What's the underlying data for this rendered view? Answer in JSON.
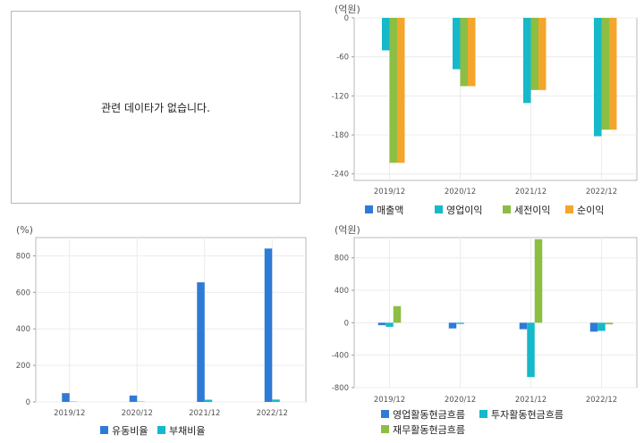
{
  "no_data_message": "관련 데이타가 없습니다.",
  "chart_data": [
    {
      "id": "income",
      "type": "bar",
      "unit_label": "(억원)",
      "categories": [
        "2019/12",
        "2020/12",
        "2021/12",
        "2022/12"
      ],
      "ylim": [
        -250,
        0
      ],
      "yticks": [
        0,
        -60,
        -120,
        -180,
        -240
      ],
      "grid": true,
      "legend_placement": "bottom",
      "series": [
        {
          "name": "매출액",
          "color": "#2e7bd6",
          "values": [
            0,
            0,
            0,
            0
          ]
        },
        {
          "name": "영업이익",
          "color": "#16b9c9",
          "values": [
            -50,
            -79,
            -131,
            -182
          ]
        },
        {
          "name": "세전이익",
          "color": "#8cbe43",
          "values": [
            -223,
            -105,
            -111,
            -172
          ]
        },
        {
          "name": "순이익",
          "color": "#f3a62b",
          "values": [
            -223,
            -105,
            -111,
            -172
          ]
        }
      ]
    },
    {
      "id": "ratio",
      "type": "bar",
      "unit_label": "(%)",
      "categories": [
        "2019/12",
        "2020/12",
        "2021/12",
        "2022/12"
      ],
      "ylim": [
        0,
        900
      ],
      "yticks": [
        0,
        200,
        400,
        600,
        800
      ],
      "grid": true,
      "legend_placement": "bottom",
      "series": [
        {
          "name": "유동비율",
          "color": "#2e7bd6",
          "values": [
            48,
            35,
            655,
            840
          ]
        },
        {
          "name": "부채비율",
          "color": "#16b9c9",
          "values": [
            2,
            2,
            12,
            13
          ]
        }
      ]
    },
    {
      "id": "cashflow",
      "type": "bar",
      "unit_label": "(억원)",
      "categories": [
        "2019/12",
        "2020/12",
        "2021/12",
        "2022/12"
      ],
      "ylim": [
        -800,
        1050
      ],
      "yticks": [
        800,
        400,
        0,
        -400,
        -800
      ],
      "grid": true,
      "legend_placement": "bottom",
      "series": [
        {
          "name": "영업활동현금흐름",
          "color": "#2e7bd6",
          "values": [
            -30,
            -70,
            -80,
            -110
          ]
        },
        {
          "name": "투자활동현금흐름",
          "color": "#16b9c9",
          "values": [
            -50,
            -15,
            -670,
            -100
          ]
        },
        {
          "name": "재무활동현금흐름",
          "color": "#8cbe43",
          "values": [
            205,
            0,
            1030,
            -20
          ]
        }
      ]
    }
  ]
}
